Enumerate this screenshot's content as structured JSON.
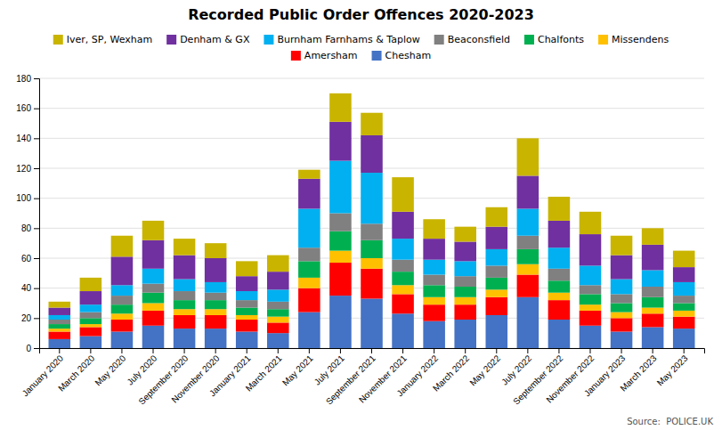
{
  "chart_data": {
    "type": "bar",
    "title": "Recorded Public Order Offences 2020-2023",
    "annotations": [
      "Source:  POLICE.UK"
    ],
    "categories": [
      "January 2020",
      "March 2020",
      "May 2020",
      "July 2020",
      "September 2020",
      "November 2020",
      "January 2021",
      "March 2021",
      "May 2021",
      "July 2021",
      "September 2021",
      "November 2021",
      "January 2022",
      "March 2022",
      "May 2022",
      "July 2022",
      "September 2022",
      "November 2022",
      "January 2023",
      "March 2023",
      "May 2023"
    ],
    "series": [
      {
        "name": "Chesham",
        "color": "#4472C4",
        "values": [
          6,
          8,
          11,
          15,
          13,
          13,
          11,
          10,
          24,
          35,
          33,
          23,
          18,
          19,
          22,
          34,
          19,
          15,
          11,
          14,
          13
        ]
      },
      {
        "name": "Amersham",
        "color": "#FF0000",
        "values": [
          5,
          6,
          8,
          10,
          9,
          9,
          8,
          7,
          16,
          22,
          20,
          13,
          11,
          10,
          12,
          15,
          13,
          10,
          9,
          9,
          8
        ]
      },
      {
        "name": "Missendens",
        "color": "#FFC000",
        "values": [
          2,
          2,
          4,
          5,
          4,
          4,
          3,
          4,
          7,
          8,
          7,
          6,
          5,
          5,
          5,
          7,
          5,
          4,
          4,
          4,
          4
        ]
      },
      {
        "name": "Chalfonts",
        "color": "#00B050",
        "values": [
          3,
          4,
          6,
          7,
          6,
          6,
          5,
          5,
          11,
          13,
          12,
          9,
          8,
          7,
          8,
          10,
          8,
          7,
          6,
          7,
          5
        ]
      },
      {
        "name": "Beaconsfield",
        "color": "#808080",
        "values": [
          3,
          4,
          6,
          6,
          6,
          5,
          5,
          5,
          9,
          12,
          11,
          8,
          7,
          7,
          8,
          9,
          8,
          6,
          6,
          7,
          5
        ]
      },
      {
        "name": "Burnham Farnhams & Taplow",
        "color": "#00B0F0",
        "values": [
          3,
          5,
          7,
          10,
          8,
          7,
          6,
          8,
          26,
          35,
          34,
          14,
          10,
          10,
          11,
          18,
          14,
          13,
          10,
          11,
          9
        ]
      },
      {
        "name": "Denham & GX",
        "color": "#7030A0",
        "values": [
          5,
          9,
          19,
          19,
          16,
          16,
          10,
          12,
          20,
          26,
          25,
          18,
          14,
          13,
          15,
          22,
          18,
          21,
          16,
          17,
          10
        ]
      },
      {
        "name": "Iver, SP, Wexham",
        "color": "#C9B400",
        "values": [
          4,
          9,
          14,
          13,
          11,
          10,
          10,
          11,
          6,
          19,
          15,
          23,
          13,
          10,
          13,
          25,
          16,
          15,
          13,
          11,
          11
        ]
      }
    ],
    "stacked": true,
    "ylim": [
      0,
      180
    ],
    "yticks": [
      0,
      20,
      40,
      60,
      80,
      100,
      120,
      140,
      160,
      180
    ],
    "grid": true,
    "legend": "top"
  }
}
